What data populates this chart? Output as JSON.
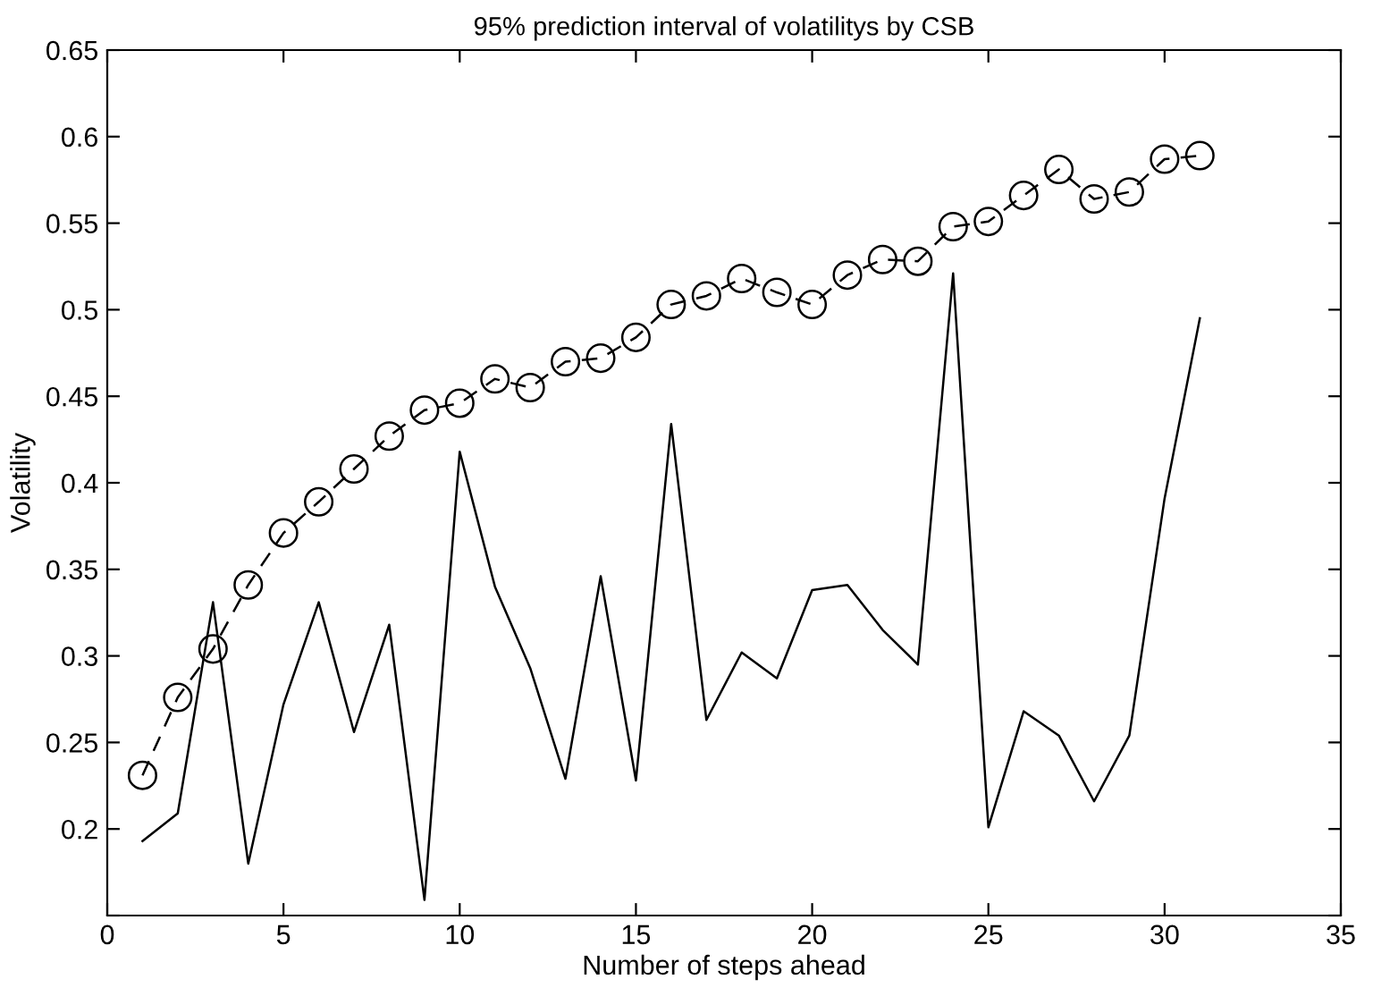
{
  "chart_data": {
    "type": "line",
    "title": "95% prediction interval of volatilitys by CSB",
    "xlabel": "Number of steps ahead",
    "ylabel": "Volatility",
    "x": [
      1,
      2,
      3,
      4,
      5,
      6,
      7,
      8,
      9,
      10,
      11,
      12,
      13,
      14,
      15,
      16,
      17,
      18,
      19,
      20,
      21,
      22,
      23,
      24,
      25,
      26,
      27,
      28,
      29,
      30,
      31
    ],
    "series": [
      {
        "color": "#000000",
        "marker": "circle",
        "line_style": "dashed",
        "values": [
          0.231,
          0.276,
          0.304,
          0.341,
          0.371,
          0.389,
          0.408,
          0.427,
          0.442,
          0.446,
          0.46,
          0.455,
          0.47,
          0.472,
          0.484,
          0.503,
          0.508,
          0.518,
          0.51,
          0.503,
          0.52,
          0.529,
          0.528,
          0.548,
          0.551,
          0.566,
          0.581,
          0.564,
          0.568,
          0.587,
          0.589
        ]
      },
      {
        "color": "#000000",
        "marker": "none",
        "line_style": "solid",
        "values": [
          0.193,
          0.209,
          0.331,
          0.18,
          0.272,
          0.331,
          0.256,
          0.318,
          0.159,
          0.418,
          0.34,
          0.293,
          0.229,
          0.346,
          0.228,
          0.434,
          0.263,
          0.302,
          0.287,
          0.338,
          0.341,
          0.315,
          0.295,
          0.521,
          0.201,
          0.268,
          0.254,
          0.216,
          0.254,
          0.391,
          0.495
        ]
      }
    ],
    "xlim": [
      0,
      35
    ],
    "xticks": [
      0,
      5,
      10,
      15,
      20,
      25,
      30,
      35
    ],
    "ylim": [
      0.15,
      0.65
    ],
    "yticks": [
      {
        "value": 0.15,
        "label": null
      },
      0.2,
      0.25,
      0.3,
      0.35,
      0.4,
      0.45,
      0.5,
      0.55,
      0.6,
      0.65
    ],
    "grid": false,
    "legend": false
  }
}
